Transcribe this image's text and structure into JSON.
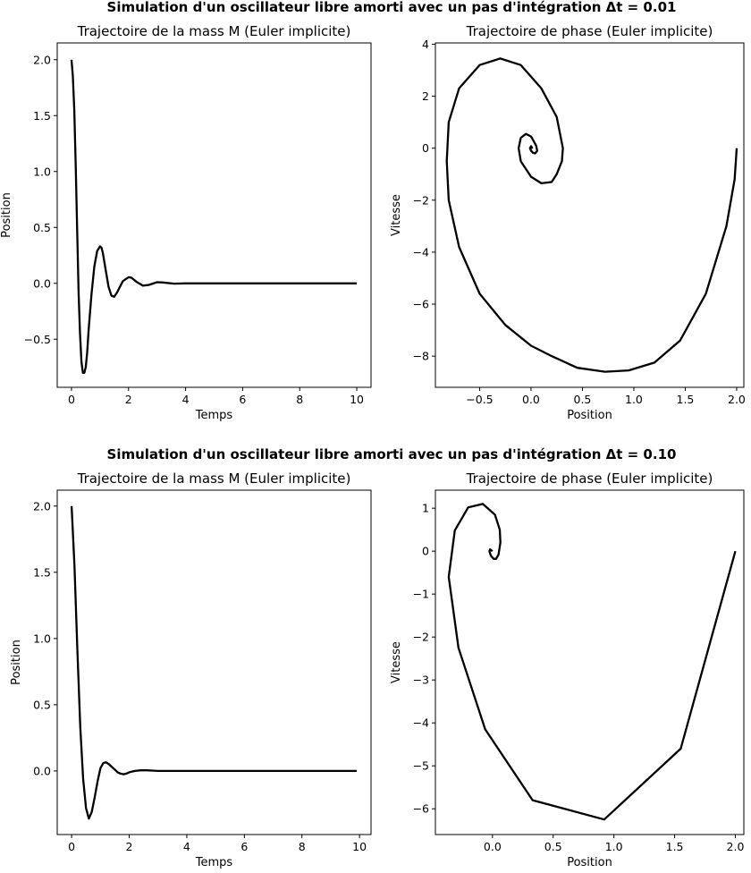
{
  "figure": {
    "suptitles": [
      "Simulation d'un oscillateur libre amorti avec un pas d'intégration Δt = 0.01",
      "Simulation d'un oscillateur libre amorti avec un pas d'intégration Δt = 0.10"
    ]
  },
  "colors": {
    "line": "#000000",
    "axes": "#000000",
    "background": "#ffffff"
  },
  "chart_data": [
    {
      "type": "line",
      "title": "Trajectoire de la mass M (Euler implicite)",
      "xlabel": "Temps",
      "ylabel": "Position",
      "xlim": [
        -0.5,
        10.5
      ],
      "ylim": [
        -0.93,
        2.15
      ],
      "xticks": [
        0,
        2,
        4,
        6,
        8,
        10
      ],
      "xtick_labels": [
        "0",
        "2",
        "4",
        "6",
        "8",
        "10"
      ],
      "yticks": [
        -0.5,
        0.0,
        0.5,
        1.0,
        1.5,
        2.0
      ],
      "ytick_labels": [
        "−0.5",
        "0.0",
        "0.5",
        "1.0",
        "1.5",
        "2.0"
      ],
      "grid": false,
      "series": [
        {
          "x": [
            0,
            0.05,
            0.1,
            0.15,
            0.2,
            0.25,
            0.3,
            0.35,
            0.4,
            0.45,
            0.5,
            0.55,
            0.6,
            0.7,
            0.8,
            0.9,
            1.0,
            1.05,
            1.1,
            1.2,
            1.3,
            1.4,
            1.5,
            1.6,
            1.8,
            2.0,
            2.1,
            2.3,
            2.5,
            2.7,
            3.0,
            3.2,
            3.6,
            4.0,
            4.5,
            5.0,
            6.0,
            7.0,
            8.0,
            9.0,
            10.0
          ],
          "y": [
            2.0,
            1.85,
            1.55,
            1.05,
            0.48,
            -0.08,
            -0.45,
            -0.7,
            -0.8,
            -0.8,
            -0.75,
            -0.62,
            -0.42,
            -0.1,
            0.15,
            0.29,
            0.33,
            0.32,
            0.27,
            0.12,
            -0.03,
            -0.11,
            -0.12,
            -0.08,
            0.02,
            0.055,
            0.05,
            0.01,
            -0.02,
            -0.015,
            0.01,
            0.008,
            -0.003,
            0.0,
            0.0,
            0.0,
            0.0,
            0.0,
            0.0,
            0.0,
            0.0
          ]
        }
      ]
    },
    {
      "type": "line",
      "title": "Trajectoire de phase (Euler implicite)",
      "xlabel": "Position",
      "ylabel": "Vitesse",
      "xlim": [
        -0.93,
        2.07
      ],
      "ylim": [
        -9.2,
        4.05
      ],
      "xticks": [
        -0.5,
        0.0,
        0.5,
        1.0,
        1.5,
        2.0
      ],
      "xtick_labels": [
        "−0.5",
        "0.0",
        "0.5",
        "1.0",
        "1.5",
        "2.0"
      ],
      "yticks": [
        -8,
        -6,
        -4,
        -2,
        0,
        2,
        4
      ],
      "ytick_labels": [
        "−8",
        "−6",
        "−4",
        "−2",
        "0",
        "2",
        "4"
      ],
      "grid": false,
      "series": [
        {
          "x": [
            2.0,
            1.98,
            1.9,
            1.7,
            1.45,
            1.2,
            0.95,
            0.72,
            0.45,
            0.2,
            0.0,
            -0.25,
            -0.5,
            -0.7,
            -0.8,
            -0.82,
            -0.8,
            -0.7,
            -0.5,
            -0.3,
            -0.1,
            0.1,
            0.25,
            0.31,
            0.3,
            0.25,
            0.2,
            0.1,
            0.0,
            -0.1,
            -0.12,
            -0.1,
            -0.05,
            0.0,
            0.05,
            0.06,
            0.04,
            0.02,
            0.0,
            -0.01,
            0.0,
            0.01,
            0.0
          ],
          "y": [
            0.0,
            -1.2,
            -3.0,
            -5.6,
            -7.4,
            -8.25,
            -8.55,
            -8.6,
            -8.45,
            -8.0,
            -7.6,
            -6.8,
            -5.6,
            -3.8,
            -2.0,
            -0.5,
            1.0,
            2.3,
            3.2,
            3.45,
            3.2,
            2.3,
            1.2,
            0.0,
            -0.5,
            -1.0,
            -1.3,
            -1.35,
            -1.1,
            -0.5,
            0.0,
            0.4,
            0.55,
            0.45,
            0.1,
            -0.1,
            -0.2,
            -0.18,
            -0.1,
            0.0,
            0.08,
            0.02,
            0.0
          ]
        }
      ]
    },
    {
      "type": "line",
      "title": "Trajectoire de la mass M (Euler implicite)",
      "xlabel": "Temps",
      "ylabel": "Position",
      "xlim": [
        -0.5,
        10.4
      ],
      "ylim": [
        -0.48,
        2.12
      ],
      "xticks": [
        0,
        2,
        4,
        6,
        8,
        10
      ],
      "xtick_labels": [
        "0",
        "2",
        "4",
        "6",
        "8",
        "10"
      ],
      "yticks": [
        0.0,
        0.5,
        1.0,
        1.5,
        2.0
      ],
      "ytick_labels": [
        "0.0",
        "0.5",
        "1.0",
        "1.5",
        "2.0"
      ],
      "grid": false,
      "series": [
        {
          "x": [
            0,
            0.1,
            0.2,
            0.3,
            0.4,
            0.5,
            0.6,
            0.7,
            0.8,
            0.9,
            1.0,
            1.1,
            1.2,
            1.3,
            1.4,
            1.5,
            1.6,
            1.7,
            1.8,
            1.9,
            2.0,
            2.2,
            2.4,
            2.6,
            2.8,
            3.0,
            3.5,
            4.0,
            5.0,
            6.0,
            7.0,
            8.0,
            9.0,
            9.9
          ],
          "y": [
            2.0,
            1.55,
            0.92,
            0.33,
            -0.06,
            -0.28,
            -0.36,
            -0.31,
            -0.2,
            -0.08,
            0.02,
            0.06,
            0.065,
            0.05,
            0.03,
            0.01,
            -0.01,
            -0.02,
            -0.025,
            -0.02,
            -0.01,
            0.0,
            0.005,
            0.005,
            0.003,
            0.0,
            0.0,
            0.0,
            0.0,
            0.0,
            0.0,
            0.0,
            0.0,
            0.0
          ]
        }
      ]
    },
    {
      "type": "line",
      "title": "Trajectoire de phase (Euler implicite)",
      "xlabel": "Position",
      "ylabel": "Vitesse",
      "xlim": [
        -0.47,
        2.07
      ],
      "ylim": [
        -6.6,
        1.42
      ],
      "xticks": [
        0.0,
        0.5,
        1.0,
        1.5,
        2.0
      ],
      "xtick_labels": [
        "0.0",
        "0.5",
        "1.0",
        "1.5",
        "2.0"
      ],
      "yticks": [
        -6,
        -5,
        -4,
        -3,
        -2,
        -1,
        0,
        1
      ],
      "ytick_labels": [
        "−6",
        "−5",
        "−4",
        "−3",
        "−2",
        "−1",
        "0",
        "1"
      ],
      "grid": false,
      "series": [
        {
          "x": [
            2.0,
            1.55,
            0.92,
            0.33,
            -0.06,
            -0.28,
            -0.36,
            -0.31,
            -0.2,
            -0.08,
            0.02,
            0.06,
            0.065,
            0.05,
            0.03,
            0.01,
            -0.01,
            -0.02,
            -0.025,
            -0.02,
            -0.01,
            0.0
          ],
          "y": [
            0.0,
            -4.6,
            -6.25,
            -5.8,
            -4.15,
            -2.25,
            -0.6,
            0.48,
            1.02,
            1.1,
            0.85,
            0.5,
            0.2,
            -0.08,
            -0.18,
            -0.18,
            -0.12,
            -0.05,
            0.0,
            0.04,
            0.02,
            0.0
          ]
        }
      ]
    }
  ]
}
